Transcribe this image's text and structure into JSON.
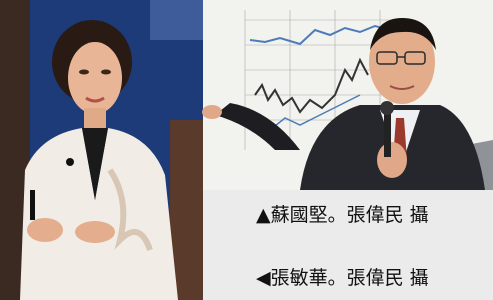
{
  "captions": {
    "top": "▲蘇國堅。張偉民 攝",
    "bottom": "◀張敏華。張偉民 攝"
  }
}
